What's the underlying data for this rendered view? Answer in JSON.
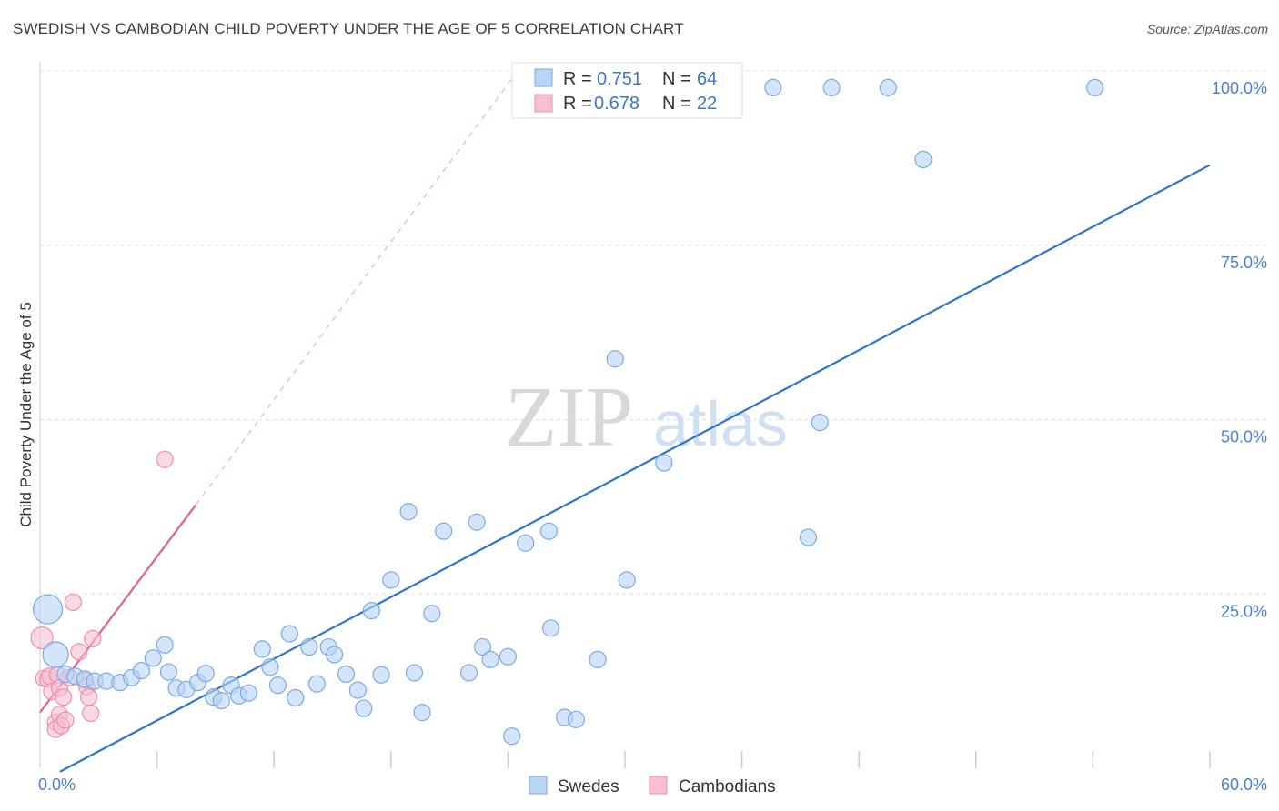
{
  "title": "SWEDISH VS CAMBODIAN CHILD POVERTY UNDER THE AGE OF 5 CORRELATION CHART",
  "source": "Source: ZipAtlas.com",
  "watermark": {
    "zip": "ZIP",
    "atlas": "atlas"
  },
  "colors": {
    "swedes_fill": "#b9d4f5",
    "swedes_stroke": "#7aaae6",
    "swedes_line": "#2f74cf",
    "cambodians_fill": "#f7bfd0",
    "cambodians_stroke": "#ec8fae",
    "cambodians_line": "#e4608a",
    "axis_text": "#4a7fd0",
    "grid": "#e2e2e2"
  },
  "legend": {
    "swedes": {
      "r_label": "R =",
      "r_value": "0.751",
      "n_label": "N =",
      "n_value": "64"
    },
    "cambodians": {
      "r_label": "R =",
      "r_value": "0.678",
      "n_label": "N =",
      "n_value": "22"
    }
  },
  "chart_data": {
    "type": "scatter",
    "title": "SWEDISH VS CAMBODIAN CHILD POVERTY UNDER THE AGE OF 5 CORRELATION CHART",
    "xlabel": "",
    "ylabel": "Child Poverty Under the Age of 5",
    "xlim": [
      0,
      60
    ],
    "ylim": [
      0,
      100
    ],
    "x_tick_labels": {
      "min": "0.0%",
      "max": "60.0%"
    },
    "y_tick_labels": [
      "25.0%",
      "50.0%",
      "75.0%",
      "100.0%"
    ],
    "y_tick_values": [
      25,
      50,
      75,
      100
    ],
    "x_minor_ticks": [
      6,
      12,
      18,
      24,
      30,
      36,
      42,
      48,
      54,
      60
    ],
    "series": [
      {
        "name": "Swedes",
        "r": 0.751,
        "n": 64,
        "trend": {
          "x": [
            0,
            60
          ],
          "y": [
            -2,
            86.5
          ]
        },
        "points": [
          [
            0.4,
            22.8,
            16
          ],
          [
            0.8,
            16.3,
            14
          ],
          [
            1.3,
            13.5,
            9
          ],
          [
            1.8,
            13.2,
            9
          ],
          [
            2.3,
            12.8,
            9
          ],
          [
            2.8,
            12.5,
            9
          ],
          [
            3.4,
            12.5,
            9
          ],
          [
            4.1,
            12.3,
            9
          ],
          [
            4.7,
            13.0,
            9
          ],
          [
            5.2,
            14.0,
            9
          ],
          [
            5.8,
            15.8,
            9
          ],
          [
            6.4,
            17.7,
            9
          ],
          [
            6.6,
            13.8,
            9
          ],
          [
            7.0,
            11.5,
            9
          ],
          [
            7.5,
            11.3,
            9
          ],
          [
            8.1,
            12.3,
            9
          ],
          [
            8.5,
            13.6,
            9
          ],
          [
            8.9,
            10.2,
            9
          ],
          [
            9.3,
            9.7,
            9
          ],
          [
            9.8,
            11.9,
            9
          ],
          [
            10.2,
            10.4,
            9
          ],
          [
            10.7,
            10.8,
            9
          ],
          [
            11.4,
            17.1,
            9
          ],
          [
            11.8,
            14.5,
            9
          ],
          [
            12.2,
            11.9,
            9
          ],
          [
            12.8,
            19.3,
            9
          ],
          [
            13.1,
            10.1,
            9
          ],
          [
            13.8,
            17.4,
            9
          ],
          [
            14.2,
            12.1,
            9
          ],
          [
            14.8,
            17.4,
            9
          ],
          [
            15.1,
            16.3,
            9
          ],
          [
            15.7,
            13.5,
            9
          ],
          [
            16.3,
            11.2,
            9
          ],
          [
            16.6,
            8.6,
            9
          ],
          [
            17.0,
            22.6,
            9
          ],
          [
            17.5,
            13.4,
            9
          ],
          [
            18.0,
            27.0,
            9
          ],
          [
            18.9,
            36.8,
            9
          ],
          [
            19.2,
            13.7,
            9
          ],
          [
            19.6,
            8.0,
            9
          ],
          [
            20.1,
            22.2,
            9
          ],
          [
            20.7,
            34.0,
            9
          ],
          [
            22.0,
            13.7,
            9
          ],
          [
            22.4,
            35.3,
            9
          ],
          [
            22.7,
            17.4,
            9
          ],
          [
            23.1,
            15.6,
            9
          ],
          [
            24.0,
            16.0,
            9
          ],
          [
            24.9,
            32.3,
            9
          ],
          [
            26.1,
            34.0,
            9
          ],
          [
            26.2,
            20.1,
            9
          ],
          [
            26.9,
            7.3,
            9
          ],
          [
            27.5,
            7.0,
            9
          ],
          [
            28.6,
            15.6,
            9
          ],
          [
            29.5,
            58.7,
            9
          ],
          [
            30.1,
            27.0,
            9
          ],
          [
            24.2,
            4.6,
            9
          ],
          [
            32.0,
            43.8,
            9
          ],
          [
            37.6,
            97.6,
            9
          ],
          [
            39.4,
            33.1,
            9
          ],
          [
            40.0,
            49.6,
            9
          ],
          [
            40.6,
            97.6,
            9
          ],
          [
            43.5,
            97.6,
            9
          ],
          [
            45.3,
            87.3,
            9
          ],
          [
            54.1,
            97.6,
            9
          ]
        ]
      },
      {
        "name": "Cambodians",
        "r": 0.678,
        "n": 22,
        "trend": {
          "x": [
            0,
            8.0
          ],
          "y": [
            8.0,
            37.8
          ]
        },
        "trend_dashed": {
          "x": [
            8.0,
            24.5
          ],
          "y": [
            37.8,
            100
          ]
        },
        "points": [
          [
            0.1,
            18.7,
            12
          ],
          [
            0.2,
            12.9,
            9
          ],
          [
            0.4,
            12.8,
            9
          ],
          [
            0.5,
            13.2,
            9
          ],
          [
            0.6,
            11.0,
            9
          ],
          [
            0.8,
            6.6,
            9
          ],
          [
            0.8,
            5.6,
            9
          ],
          [
            0.9,
            13.4,
            9
          ],
          [
            1.0,
            11.5,
            9
          ],
          [
            1.0,
            7.7,
            9
          ],
          [
            1.1,
            6.1,
            9
          ],
          [
            1.2,
            10.2,
            9
          ],
          [
            1.3,
            6.9,
            9
          ],
          [
            1.7,
            23.8,
            9
          ],
          [
            2.0,
            16.7,
            9
          ],
          [
            2.3,
            12.6,
            9
          ],
          [
            2.4,
            11.7,
            9
          ],
          [
            2.5,
            10.2,
            9
          ],
          [
            2.6,
            7.9,
            9
          ],
          [
            2.7,
            18.6,
            9
          ],
          [
            6.4,
            44.3,
            9
          ],
          [
            1.5,
            13.0,
            9
          ]
        ]
      }
    ]
  },
  "bottom_legend": {
    "swedes": "Swedes",
    "cambodians": "Cambodians"
  }
}
